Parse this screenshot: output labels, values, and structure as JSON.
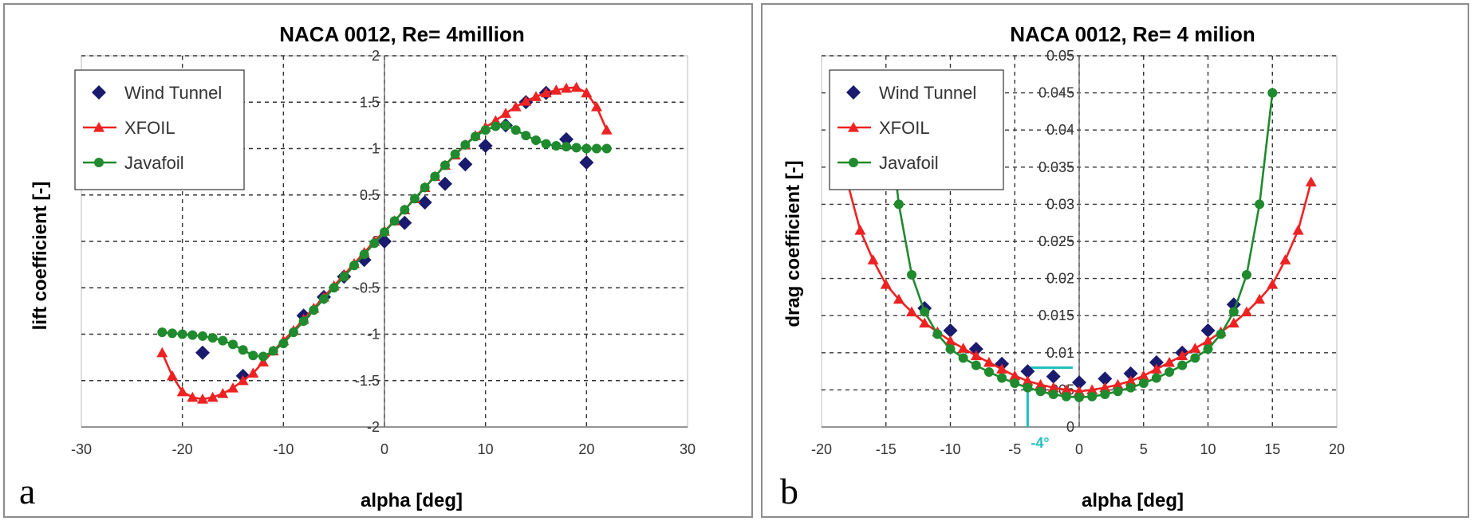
{
  "chart_data": [
    {
      "type": "scatter",
      "panel_letter": "a",
      "title": "NACA 0012, Re= 4million",
      "xlabel": "alpha [deg]",
      "ylabel": "lift coefficient [-]",
      "xlim": [
        -30,
        30
      ],
      "ylim": [
        -2,
        2
      ],
      "xticks": [
        -30,
        -20,
        -10,
        0,
        10,
        20,
        30
      ],
      "yticks": [
        -2,
        -1.5,
        -1,
        -0.5,
        0,
        0.5,
        1,
        1.5,
        2
      ],
      "xtick_labels": [
        "-30",
        "-20",
        "-10",
        "0",
        "10",
        "20",
        "30"
      ],
      "ytick_labels": [
        "-2",
        "-1.5",
        "-1",
        "-0.5",
        "0",
        "0.5",
        "1",
        "1.5",
        "2"
      ],
      "grid": true,
      "legend_position": "top-left",
      "series": [
        {
          "name": "Wind Tunnel",
          "color": "#1a1a6e",
          "marker": "diamond",
          "line": false,
          "x": [
            -18,
            -14,
            -8,
            -6,
            -4,
            -2,
            0,
            2,
            4,
            6,
            8,
            10,
            12,
            14,
            16,
            18,
            20
          ],
          "y": [
            -1.2,
            -1.45,
            -0.8,
            -0.6,
            -0.38,
            -0.2,
            0,
            0.2,
            0.42,
            0.62,
            0.83,
            1.03,
            1.25,
            1.5,
            1.6,
            1.1,
            0.85
          ]
        },
        {
          "name": "XFOIL",
          "color": "#ee2222",
          "marker": "triangle",
          "line": true,
          "x": [
            -22,
            -21,
            -20,
            -19,
            -18,
            -17,
            -16,
            -15,
            -14,
            -13,
            -12,
            -11,
            -10,
            -9,
            -8,
            -7,
            -6,
            -5,
            -4,
            -3,
            -2,
            -1,
            0,
            1,
            2,
            3,
            4,
            5,
            6,
            7,
            8,
            9,
            10,
            11,
            12,
            13,
            14,
            15,
            16,
            17,
            18,
            19,
            20,
            21,
            22
          ],
          "y": [
            -1.2,
            -1.45,
            -1.62,
            -1.68,
            -1.7,
            -1.68,
            -1.64,
            -1.58,
            -1.5,
            -1.42,
            -1.3,
            -1.18,
            -1.07,
            -0.96,
            -0.84,
            -0.72,
            -0.6,
            -0.48,
            -0.36,
            -0.24,
            -0.12,
            0,
            0.11,
            0.22,
            0.34,
            0.46,
            0.58,
            0.7,
            0.82,
            0.93,
            1.04,
            1.14,
            1.23,
            1.3,
            1.38,
            1.45,
            1.51,
            1.56,
            1.6,
            1.63,
            1.65,
            1.66,
            1.6,
            1.45,
            1.2
          ]
        },
        {
          "name": "Javafoil",
          "color": "#1f8a2e",
          "marker": "circle",
          "line": true,
          "x": [
            -22,
            -21,
            -20,
            -19,
            -18,
            -17,
            -16,
            -15,
            -14,
            -13,
            -12,
            -11,
            -10,
            -9,
            -8,
            -7,
            -6,
            -5,
            -4,
            -3,
            -2,
            -1,
            0,
            1,
            2,
            3,
            4,
            5,
            6,
            7,
            8,
            9,
            10,
            11,
            12,
            13,
            14,
            15,
            16,
            17,
            18,
            19,
            20,
            21,
            22
          ],
          "y": [
            -0.98,
            -0.99,
            -1.0,
            -1.01,
            -1.02,
            -1.04,
            -1.07,
            -1.11,
            -1.17,
            -1.23,
            -1.24,
            -1.18,
            -1.1,
            -0.98,
            -0.86,
            -0.74,
            -0.62,
            -0.5,
            -0.38,
            -0.26,
            -0.14,
            -0.02,
            0.1,
            0.22,
            0.34,
            0.46,
            0.58,
            0.7,
            0.82,
            0.94,
            1.04,
            1.13,
            1.2,
            1.24,
            1.25,
            1.2,
            1.14,
            1.09,
            1.05,
            1.03,
            1.02,
            1.01,
            1.0,
            1.0,
            1.0
          ]
        }
      ]
    },
    {
      "type": "scatter",
      "panel_letter": "b",
      "title": "NACA 0012, Re= 4 milion",
      "xlabel": "alpha [deg]",
      "ylabel": "drag coefficient [-]",
      "xlim": [
        -20,
        20
      ],
      "ylim": [
        0,
        0.05
      ],
      "xticks": [
        -20,
        -15,
        -10,
        -5,
        0,
        5,
        10,
        15,
        20
      ],
      "yticks": [
        0,
        0.005,
        0.01,
        0.015,
        0.02,
        0.025,
        0.03,
        0.035,
        0.04,
        0.045,
        0.05
      ],
      "xtick_labels": [
        "-20",
        "-15",
        "-10",
        "-5",
        "0",
        "5",
        "10",
        "15",
        "20"
      ],
      "ytick_labels": [
        "0",
        "0.005",
        "0.01",
        "0.015",
        "0.02",
        "0.025",
        "0.03",
        "0.035",
        "0.04",
        "0.045",
        "0.05"
      ],
      "grid": true,
      "legend_position": "top-left",
      "annotation": {
        "text": "-4°",
        "x": -4,
        "y": 0.008,
        "color": "#20c0c0"
      },
      "series": [
        {
          "name": "Wind Tunnel",
          "color": "#1a1a6e",
          "marker": "diamond",
          "line": false,
          "x": [
            -12,
            -10,
            -8,
            -6,
            -4,
            -2,
            0,
            2,
            4,
            6,
            8,
            10,
            12
          ],
          "y": [
            0.016,
            0.013,
            0.0105,
            0.0085,
            0.0075,
            0.0068,
            0.006,
            0.0065,
            0.0072,
            0.0087,
            0.01,
            0.013,
            0.0165
          ]
        },
        {
          "name": "XFOIL",
          "color": "#ee2222",
          "marker": "triangle",
          "line": true,
          "x": [
            -18,
            -17,
            -16,
            -15,
            -14,
            -13,
            -12,
            -11,
            -10,
            -9,
            -8,
            -7,
            -6,
            -5,
            -4,
            -3,
            -2,
            -1,
            0,
            1,
            2,
            3,
            4,
            5,
            6,
            7,
            8,
            9,
            10,
            11,
            12,
            13,
            14,
            15,
            16,
            17,
            18
          ],
          "y": [
            0.033,
            0.0265,
            0.0225,
            0.0192,
            0.0172,
            0.0155,
            0.014,
            0.0128,
            0.0116,
            0.0106,
            0.0096,
            0.0087,
            0.0078,
            0.0069,
            0.0062,
            0.0057,
            0.0053,
            0.005,
            0.0048,
            0.005,
            0.0053,
            0.0057,
            0.0062,
            0.0069,
            0.0078,
            0.0087,
            0.0096,
            0.0106,
            0.0116,
            0.0128,
            0.014,
            0.0155,
            0.0172,
            0.0192,
            0.0225,
            0.0265,
            0.033
          ]
        },
        {
          "name": "Javafoil",
          "color": "#1f8a2e",
          "marker": "circle",
          "line": true,
          "x": [
            -15,
            -14,
            -13,
            -12,
            -11,
            -10,
            -9,
            -8,
            -7,
            -6,
            -5,
            -4,
            -3,
            -2,
            -1,
            0,
            1,
            2,
            3,
            4,
            5,
            6,
            7,
            8,
            9,
            10,
            11,
            12,
            13,
            14,
            15
          ],
          "y": [
            0.045,
            0.03,
            0.0205,
            0.0155,
            0.0125,
            0.0105,
            0.0093,
            0.0083,
            0.0074,
            0.0066,
            0.0059,
            0.0053,
            0.0048,
            0.0044,
            0.0041,
            0.004,
            0.0041,
            0.0044,
            0.0048,
            0.0053,
            0.0059,
            0.0066,
            0.0074,
            0.0083,
            0.0093,
            0.0105,
            0.0125,
            0.0155,
            0.0205,
            0.03,
            0.045
          ]
        }
      ]
    }
  ]
}
